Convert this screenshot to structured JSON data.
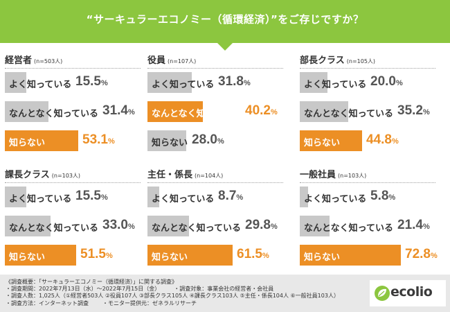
{
  "header": {
    "title": "“サーキュラーエコノミー（循環経済）”をご存じですか？",
    "bg_color": "#8cc63f"
  },
  "chart_data": [
    {
      "type": "bar",
      "title": "経営者",
      "n_label": "(n=503人)",
      "categories": [
        "よく知っている",
        "なんとなく知っている",
        "知らない"
      ],
      "values": [
        15.5,
        31.4,
        53.1
      ],
      "highlight_index": 2,
      "xlim": [
        0,
        100
      ]
    },
    {
      "type": "bar",
      "title": "役員",
      "n_label": "(n=107人)",
      "categories": [
        "よく知っている",
        "なんとなく知っている",
        "知らない"
      ],
      "values": [
        31.8,
        40.2,
        28.0
      ],
      "highlight_index": 1,
      "xlim": [
        0,
        100
      ]
    },
    {
      "type": "bar",
      "title": "部長クラス",
      "n_label": "(n=105人)",
      "categories": [
        "よく知っている",
        "なんとなく知っている",
        "知らない"
      ],
      "values": [
        20.0,
        35.2,
        44.8
      ],
      "highlight_index": 2,
      "xlim": [
        0,
        100
      ]
    },
    {
      "type": "bar",
      "title": "課長クラス",
      "n_label": "(n=103人)",
      "categories": [
        "よく知っている",
        "なんとなく知っている",
        "知らない"
      ],
      "values": [
        15.5,
        33.0,
        51.5
      ],
      "highlight_index": 2,
      "xlim": [
        0,
        100
      ]
    },
    {
      "type": "bar",
      "title": "主任・係長",
      "n_label": "(n=104人)",
      "categories": [
        "よく知っている",
        "なんとなく知っている",
        "知らない"
      ],
      "values": [
        8.7,
        29.8,
        61.5
      ],
      "highlight_index": 2,
      "xlim": [
        0,
        100
      ]
    },
    {
      "type": "bar",
      "title": "一般社員",
      "n_label": "(n=103人)",
      "categories": [
        "よく知っている",
        "なんとなく知っている",
        "知らない"
      ],
      "values": [
        5.8,
        21.4,
        72.8
      ],
      "highlight_index": 2,
      "xlim": [
        0,
        100
      ]
    }
  ],
  "colors": {
    "bar": "#c8c8c8",
    "highlight": "#ec8f25"
  },
  "footer": {
    "heading": "《調査概要：「サーキュラーエコノミー（循環経済）」に関する調査》",
    "period": "・調査期間：2022年7月13日（水）～2022年7月15日（金）",
    "target": "・調査対象：事業会社の経営者・会社員",
    "people": "・調査人数：1,025人（①経営者503人 ②役員107人 ③部長クラス105人 ④課長クラス103人 ⑤主任・係長104人 ⑥一般社員103人）",
    "method": "・調査方法：インターネット調査",
    "provider": "・モニター提供元：ゼネラルリサーチ",
    "logo_text": "ecolio"
  }
}
